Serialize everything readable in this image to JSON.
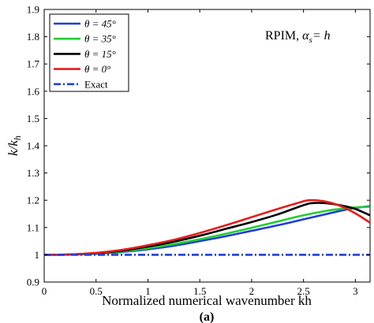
{
  "chart_data": {
    "type": "line",
    "title": "",
    "annotation": {
      "prefix": "RPIM, ",
      "symbol": "α",
      "subscript": "s",
      "suffix": "= h"
    },
    "xlabel": "Normalized numerical wavenumber kh",
    "ylabel": {
      "base": "k/k",
      "subscript": "h"
    },
    "caption": "(a)",
    "xlim": [
      0,
      3.14159
    ],
    "ylim": [
      0.9,
      1.9
    ],
    "xticks": [
      0,
      0.5,
      1,
      1.5,
      2,
      2.5,
      3
    ],
    "xtick_labels": [
      "0",
      "0.5",
      "1",
      "1.5",
      "2",
      "2.5",
      "3"
    ],
    "yticks": [
      0.9,
      1.0,
      1.1,
      1.2,
      1.3,
      1.4,
      1.5,
      1.6,
      1.7,
      1.8,
      1.9
    ],
    "ytick_labels": [
      "0.9",
      "1",
      "1.1",
      "1.2",
      "1.3",
      "1.4",
      "1.5",
      "1.6",
      "1.7",
      "1.8",
      "1.9"
    ],
    "grid": false,
    "legend_position": "top-left",
    "series": [
      {
        "name": "θ = 45°",
        "color": "#1f3fd6",
        "dash": "solid",
        "x": [
          0,
          0.25,
          0.5,
          0.75,
          1.0,
          1.25,
          1.5,
          1.75,
          2.0,
          2.25,
          2.5,
          2.75,
          2.9,
          3.0,
          3.14
        ],
        "y": [
          1.0,
          1.001,
          1.004,
          1.01,
          1.02,
          1.033,
          1.05,
          1.068,
          1.088,
          1.108,
          1.13,
          1.152,
          1.165,
          1.172,
          1.178
        ]
      },
      {
        "name": "θ = 35°",
        "color": "#22cc33",
        "dash": "solid",
        "x": [
          0,
          0.25,
          0.5,
          0.75,
          1.0,
          1.25,
          1.5,
          1.75,
          2.0,
          2.25,
          2.5,
          2.75,
          2.9,
          3.0,
          3.14
        ],
        "y": [
          1.0,
          1.001,
          1.005,
          1.012,
          1.024,
          1.039,
          1.057,
          1.077,
          1.099,
          1.122,
          1.145,
          1.163,
          1.17,
          1.174,
          1.176
        ]
      },
      {
        "name": "θ = 15°",
        "color": "#000000",
        "dash": "solid",
        "x": [
          0,
          0.25,
          0.5,
          0.75,
          1.0,
          1.25,
          1.5,
          1.75,
          2.0,
          2.25,
          2.5,
          2.6,
          2.75,
          2.9,
          3.0,
          3.14
        ],
        "y": [
          1.0,
          1.001,
          1.006,
          1.015,
          1.03,
          1.048,
          1.07,
          1.095,
          1.12,
          1.148,
          1.182,
          1.19,
          1.188,
          1.178,
          1.168,
          1.145
        ]
      },
      {
        "name": "θ = 0°",
        "color": "#e81c1c",
        "dash": "solid",
        "x": [
          0,
          0.25,
          0.5,
          0.75,
          1.0,
          1.25,
          1.5,
          1.75,
          2.0,
          2.25,
          2.4,
          2.55,
          2.7,
          2.85,
          3.0,
          3.14
        ],
        "y": [
          1.0,
          1.001,
          1.007,
          1.018,
          1.035,
          1.055,
          1.08,
          1.108,
          1.138,
          1.168,
          1.185,
          1.2,
          1.196,
          1.18,
          1.152,
          1.118
        ]
      },
      {
        "name": "Exact",
        "color": "#1f3fd6",
        "dash": "dashdot",
        "x": [
          0,
          3.14159
        ],
        "y": [
          1.0,
          1.0
        ]
      }
    ]
  }
}
